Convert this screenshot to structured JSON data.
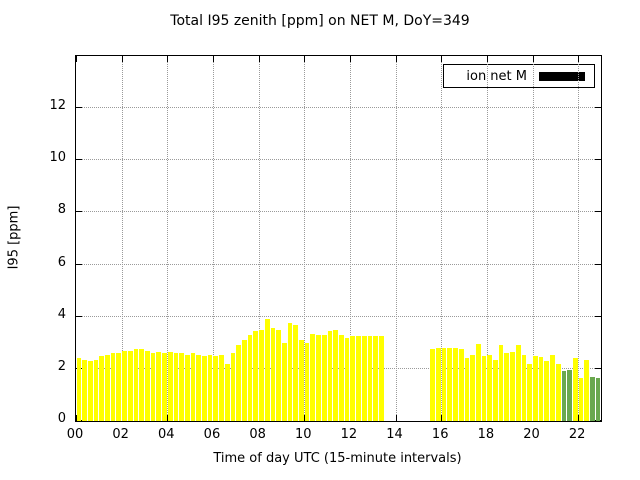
{
  "chart_data": {
    "type": "bar",
    "title": "Total I95 zenith [ppm] on NET M, DoY=349",
    "xlabel": "Time of day UTC (15-minute intervals)",
    "ylabel": "I95 [ppm]",
    "xlim": [
      0,
      23
    ],
    "ylim": [
      0,
      14
    ],
    "grid": true,
    "bar_width_hours": 0.25,
    "xticks": {
      "values": [
        0,
        2,
        4,
        6,
        8,
        10,
        12,
        14,
        16,
        18,
        20,
        22
      ],
      "labels": [
        "00",
        "02",
        "04",
        "06",
        "08",
        "10",
        "12",
        "14",
        "16",
        "18",
        "20",
        "22"
      ]
    },
    "yticks": {
      "values": [
        0,
        2,
        4,
        6,
        8,
        10,
        12
      ],
      "labels": [
        "0",
        "2",
        "4",
        "6",
        "8",
        "10",
        "12"
      ]
    },
    "legend": {
      "label": "ion net M",
      "swatch_color": "#000000",
      "position": "top-right",
      "boxed": true
    },
    "colors": {
      "y": "#ffff00",
      "g": "#6aa84f"
    },
    "bars": [
      [
        0.0,
        2.4,
        "y"
      ],
      [
        0.25,
        2.35,
        "y"
      ],
      [
        0.5,
        2.3,
        "y"
      ],
      [
        0.75,
        2.35,
        "y"
      ],
      [
        1.0,
        2.5,
        "y"
      ],
      [
        1.25,
        2.55,
        "y"
      ],
      [
        1.5,
        2.6,
        "y"
      ],
      [
        1.75,
        2.6,
        "y"
      ],
      [
        2.0,
        2.7,
        "y"
      ],
      [
        2.25,
        2.7,
        "y"
      ],
      [
        2.5,
        2.75,
        "y"
      ],
      [
        2.75,
        2.75,
        "y"
      ],
      [
        3.0,
        2.7,
        "y"
      ],
      [
        3.25,
        2.6,
        "y"
      ],
      [
        3.5,
        2.65,
        "y"
      ],
      [
        3.75,
        2.6,
        "y"
      ],
      [
        4.0,
        2.65,
        "y"
      ],
      [
        4.25,
        2.6,
        "y"
      ],
      [
        4.5,
        2.6,
        "y"
      ],
      [
        4.75,
        2.55,
        "y"
      ],
      [
        5.0,
        2.6,
        "y"
      ],
      [
        5.25,
        2.55,
        "y"
      ],
      [
        5.5,
        2.5,
        "y"
      ],
      [
        5.75,
        2.55,
        "y"
      ],
      [
        6.0,
        2.5,
        "y"
      ],
      [
        6.25,
        2.55,
        "y"
      ],
      [
        6.5,
        2.2,
        "y"
      ],
      [
        6.75,
        2.6,
        "y"
      ],
      [
        7.0,
        2.9,
        "y"
      ],
      [
        7.25,
        3.1,
        "y"
      ],
      [
        7.5,
        3.3,
        "y"
      ],
      [
        7.75,
        3.45,
        "y"
      ],
      [
        8.0,
        3.5,
        "y"
      ],
      [
        8.25,
        3.9,
        "y"
      ],
      [
        8.5,
        3.55,
        "y"
      ],
      [
        8.75,
        3.5,
        "y"
      ],
      [
        9.0,
        3.0,
        "y"
      ],
      [
        9.25,
        3.75,
        "y"
      ],
      [
        9.5,
        3.7,
        "y"
      ],
      [
        9.75,
        3.1,
        "y"
      ],
      [
        10.0,
        3.0,
        "y"
      ],
      [
        10.25,
        3.35,
        "y"
      ],
      [
        10.5,
        3.3,
        "y"
      ],
      [
        10.75,
        3.3,
        "y"
      ],
      [
        11.0,
        3.45,
        "y"
      ],
      [
        11.25,
        3.5,
        "y"
      ],
      [
        11.5,
        3.3,
        "y"
      ],
      [
        11.75,
        3.2,
        "y"
      ],
      [
        12.0,
        3.25,
        "y"
      ],
      [
        12.25,
        3.25,
        "y"
      ],
      [
        12.5,
        3.25,
        "y"
      ],
      [
        12.75,
        3.25,
        "y"
      ],
      [
        13.0,
        3.25,
        "y"
      ],
      [
        13.25,
        3.25,
        "y"
      ],
      [
        15.5,
        2.75,
        "y"
      ],
      [
        15.75,
        2.8,
        "y"
      ],
      [
        16.0,
        2.8,
        "y"
      ],
      [
        16.25,
        2.8,
        "y"
      ],
      [
        16.5,
        2.8,
        "y"
      ],
      [
        16.75,
        2.75,
        "y"
      ],
      [
        17.0,
        2.4,
        "y"
      ],
      [
        17.25,
        2.55,
        "y"
      ],
      [
        17.5,
        2.95,
        "y"
      ],
      [
        17.75,
        2.5,
        "y"
      ],
      [
        18.0,
        2.55,
        "y"
      ],
      [
        18.25,
        2.35,
        "y"
      ],
      [
        18.5,
        2.9,
        "y"
      ],
      [
        18.75,
        2.6,
        "y"
      ],
      [
        19.0,
        2.65,
        "y"
      ],
      [
        19.25,
        2.9,
        "y"
      ],
      [
        19.5,
        2.55,
        "y"
      ],
      [
        19.75,
        2.2,
        "y"
      ],
      [
        20.0,
        2.5,
        "y"
      ],
      [
        20.25,
        2.45,
        "y"
      ],
      [
        20.5,
        2.3,
        "y"
      ],
      [
        20.75,
        2.55,
        "y"
      ],
      [
        21.0,
        2.2,
        "y"
      ],
      [
        21.25,
        1.9,
        "g"
      ],
      [
        21.5,
        1.95,
        "g"
      ],
      [
        21.75,
        2.4,
        "y"
      ],
      [
        22.0,
        1.65,
        "y"
      ],
      [
        22.25,
        2.35,
        "y"
      ],
      [
        22.5,
        1.7,
        "g"
      ],
      [
        22.75,
        1.65,
        "g"
      ]
    ]
  }
}
